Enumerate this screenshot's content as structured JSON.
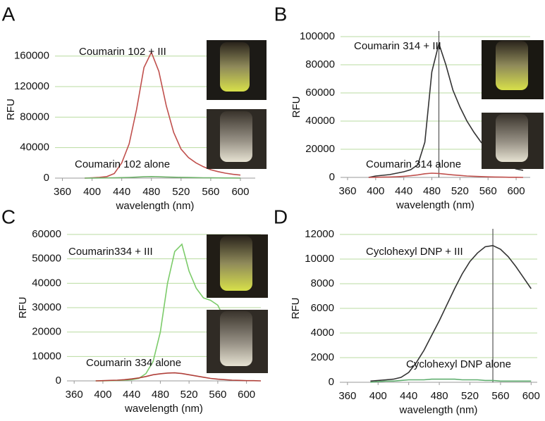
{
  "chart_data": [
    {
      "type": "line",
      "label": "A",
      "xlabel": "wavelength (nm)",
      "ylabel": "RFU",
      "xlim": [
        350,
        620
      ],
      "xticks": [
        360,
        400,
        440,
        480,
        520,
        560,
        600
      ],
      "ylim": [
        0,
        180000
      ],
      "yticks": [
        0,
        40000,
        80000,
        120000,
        160000
      ],
      "grid": true,
      "x": [
        390,
        400,
        410,
        420,
        430,
        440,
        450,
        460,
        470,
        480,
        490,
        500,
        510,
        520,
        530,
        540,
        550,
        560,
        570,
        580,
        590,
        600
      ],
      "series": [
        {
          "name": "Coumarin 102 + III",
          "color": "#c0504d",
          "values": [
            0,
            500,
            1000,
            2000,
            6000,
            20000,
            45000,
            90000,
            145000,
            165000,
            140000,
            95000,
            60000,
            38000,
            27000,
            20000,
            15000,
            11000,
            8500,
            6500,
            5000,
            4000
          ]
        },
        {
          "name": "Coumarin 102 alone",
          "color": "#6fb36a",
          "values": [
            0,
            100,
            200,
            300,
            400,
            600,
            900,
            1300,
            1800,
            2000,
            1800,
            1500,
            1200,
            1000,
            800,
            600,
            500,
            400,
            300,
            200,
            200,
            100
          ]
        }
      ]
    },
    {
      "type": "line",
      "label": "B",
      "xlabel": "wavelength (nm)",
      "ylabel": "RFU",
      "xlim": [
        350,
        620
      ],
      "xticks": [
        360,
        400,
        440,
        480,
        520,
        560,
        600
      ],
      "ylim": [
        0,
        100000
      ],
      "yticks": [
        0,
        20000,
        40000,
        60000,
        80000,
        100000
      ],
      "grid": true,
      "vline": 490,
      "x": [
        390,
        400,
        410,
        420,
        430,
        440,
        450,
        460,
        470,
        480,
        490,
        500,
        510,
        520,
        530,
        540,
        550,
        560,
        570,
        580,
        590,
        600,
        610
      ],
      "series": [
        {
          "name": "Coumarin 314 + III",
          "color": "#333333",
          "values": [
            0,
            1000,
            1500,
            2000,
            3000,
            4000,
            5500,
            9000,
            25000,
            75000,
            95000,
            80000,
            62000,
            50000,
            40000,
            32000,
            25000,
            20000,
            15000,
            11000,
            8000,
            6000,
            5000
          ]
        },
        {
          "name": "Coumarin 314 alone",
          "color": "#c0504d",
          "values": [
            0,
            100,
            200,
            300,
            500,
            800,
            1200,
            1800,
            2600,
            3000,
            2800,
            2300,
            1800,
            1400,
            1000,
            800,
            600,
            400,
            300,
            200,
            100,
            100,
            0
          ]
        }
      ]
    },
    {
      "type": "line",
      "label": "C",
      "xlabel": "wavelength (nm)",
      "ylabel": "RFU",
      "xlim": [
        350,
        620
      ],
      "xticks": [
        360,
        400,
        440,
        480,
        520,
        560,
        600
      ],
      "ylim": [
        0,
        60000
      ],
      "yticks": [
        0,
        10000,
        20000,
        30000,
        40000,
        50000,
        60000
      ],
      "grid": true,
      "x": [
        390,
        400,
        410,
        420,
        430,
        440,
        450,
        460,
        470,
        480,
        490,
        500,
        510,
        520,
        530,
        540,
        550,
        560,
        570,
        580,
        590,
        600,
        610,
        620
      ],
      "series": [
        {
          "name": "Coumarin334 + III",
          "color": "#7ccb6a",
          "values": [
            0,
            0,
            100,
            200,
            300,
            500,
            1000,
            3000,
            8000,
            20000,
            40000,
            53000,
            56000,
            45000,
            38000,
            34000,
            33000,
            31000,
            25000,
            18000,
            12000,
            8000,
            6000,
            4500
          ]
        },
        {
          "name": "Coumarin 334 alone",
          "color": "#b0403a",
          "values": [
            0,
            100,
            200,
            300,
            500,
            800,
            1200,
            1800,
            2500,
            2900,
            3200,
            3300,
            3000,
            2500,
            2000,
            1500,
            1000,
            700,
            500,
            300,
            200,
            100,
            100,
            0
          ]
        }
      ]
    },
    {
      "type": "line",
      "label": "D",
      "xlabel": "wavelength (nm)",
      "ylabel": "RFU",
      "xlim": [
        350,
        608
      ],
      "xticks": [
        360,
        400,
        440,
        480,
        520,
        560,
        600
      ],
      "ylim": [
        0,
        12000
      ],
      "yticks": [
        0,
        2000,
        4000,
        6000,
        8000,
        10000,
        12000
      ],
      "grid": true,
      "vline": 550,
      "x": [
        390,
        400,
        410,
        420,
        430,
        440,
        450,
        460,
        470,
        480,
        490,
        500,
        510,
        520,
        530,
        540,
        550,
        560,
        570,
        580,
        590,
        600
      ],
      "series": [
        {
          "name": "Cyclohexyl DNP + III",
          "color": "#333333",
          "values": [
            100,
            150,
            200,
            250,
            400,
            800,
            1600,
            2600,
            3800,
            5000,
            6300,
            7600,
            8800,
            9800,
            10500,
            11000,
            11100,
            10800,
            10200,
            9400,
            8500,
            7600
          ]
        },
        {
          "name": "Cyclohexyl DNP alone",
          "color": "#5fae6f",
          "values": [
            0,
            50,
            100,
            100,
            150,
            200,
            200,
            200,
            250,
            250,
            250,
            250,
            200,
            200,
            200,
            150,
            150,
            100,
            100,
            100,
            100,
            100
          ]
        }
      ]
    }
  ]
}
